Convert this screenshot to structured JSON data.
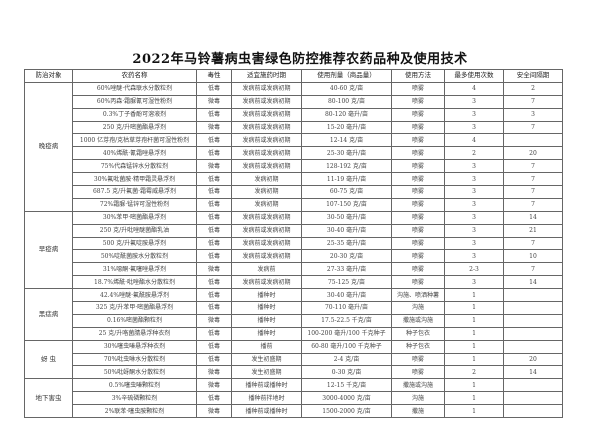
{
  "title": "2022年马铃薯病虫害绿色防控推荐农药品种及使用技术",
  "headers": [
    "防治对象",
    "农药名称",
    "毒性",
    "适宜施药时期",
    "使用剂量（商品量）",
    "使用方法",
    "最多使用次数",
    "安全间隔期"
  ],
  "groups": [
    {
      "target": "晚疫病",
      "rows": [
        [
          "60%唑醚·代森联水分散粒剂",
          "低毒",
          "发病前或发病初期",
          "40-60 克/亩",
          "喷雾",
          "4",
          "2"
        ],
        [
          "60%丙森·霜脲氰可湿性粉剂",
          "微毒",
          "发病前或发病初期",
          "80-100 克/亩",
          "喷雾",
          "3",
          "7"
        ],
        [
          "0.3%丁子香酚可溶液剂",
          "低毒",
          "发病前或发病初期",
          "80-120 毫升/亩",
          "喷雾",
          "3",
          "3"
        ],
        [
          "250 克/升嘧菌酯悬浮剂",
          "微毒",
          "发病前或发病初期",
          "15-20 毫升/亩",
          "喷雾",
          "3",
          "7"
        ],
        [
          "1000 亿芽孢/克枯草芽孢杆菌可湿性粉剂",
          "低毒",
          "发病前或发病初期",
          "12-14 克/亩",
          "喷雾",
          "4",
          ""
        ],
        [
          "40%烯酰·氰霜唑悬浮剂",
          "低毒",
          "发病前或发病初期",
          "25-30 毫升/亩",
          "喷雾",
          "2",
          "20"
        ],
        [
          "75%代森锰锌水分散粒剂",
          "微毒",
          "发病前或发病初期",
          "128-192 克/亩",
          "喷雾",
          "3",
          "7"
        ],
        [
          "30%氟吡菌胺·精甲霜灵悬浮剂",
          "低毒",
          "发病初期",
          "11-19 毫升/亩",
          "喷雾",
          "3",
          "7"
        ],
        [
          "687.5 克/升氟菌·霜霉威悬浮剂",
          "低毒",
          "发病初期",
          "60-75 克/亩",
          "喷雾",
          "3",
          "7"
        ],
        [
          "72%霜脲·锰锌可湿性粉剂",
          "低毒",
          "发病初期",
          "107-150 克/亩",
          "喷雾",
          "3",
          "7"
        ]
      ]
    },
    {
      "target": "早疫病",
      "rows": [
        [
          "30%苯甲·嘧菌酯悬浮剂",
          "低毒",
          "发病前或发病初期",
          "30-50 毫升/亩",
          "喷雾",
          "3",
          "14"
        ],
        [
          "250 克/升吡唑醚菌酯乳油",
          "低毒",
          "发病前或发病初期",
          "30-40 毫升/亩",
          "喷雾",
          "3",
          "21"
        ],
        [
          "500 克/升氟啶胺悬浮剂",
          "低毒",
          "发病前或发病初期",
          "25-35 毫升/亩",
          "喷雾",
          "3",
          "7"
        ],
        [
          "50%啶酰菌胺水分散粒剂",
          "低毒",
          "发病前或发病初期",
          "20-30 克/亩",
          "喷雾",
          "3",
          "10"
        ],
        [
          "31%噁酮·氟噻唑悬浮剂",
          "微毒",
          "发病前",
          "27-33 毫升/亩",
          "喷雾",
          "2-3",
          "7"
        ],
        [
          "18.7%烯酰·吡唑酯水分散粒剂",
          "低毒",
          "发病前或发病初期",
          "75-125 克/亩",
          "喷雾",
          "3",
          "14"
        ]
      ]
    },
    {
      "target": "黑痣病",
      "rows": [
        [
          "42.4%唑醚·氟酰胺悬浮剂",
          "低毒",
          "播种时",
          "30-40 毫升/亩",
          "沟施、喷洒种薯",
          "1",
          ""
        ],
        [
          "325 克/升苯甲·嘧菌酯悬浮剂",
          "低毒",
          "播种时",
          "70-110 毫升/亩",
          "沟施",
          "1",
          ""
        ],
        [
          "0.16%嘧菌酯颗粒剂",
          "微毒",
          "播种时",
          "17.5-22.5 千克/亩",
          "撒施或沟施",
          "1",
          ""
        ],
        [
          "25 克/升咯菌腈悬浮种衣剂",
          "低毒",
          "播种时",
          "100-200 毫升/100 千克种子",
          "种子包衣",
          "1",
          ""
        ]
      ]
    },
    {
      "target": "蚜 虫",
      "rows": [
        [
          "30%噻虫嗪悬浮种衣剂",
          "低毒",
          "播前",
          "60-80 毫升/100 千克种子",
          "种子包衣",
          "1",
          ""
        ],
        [
          "70%吡虫啉水分散粒剂",
          "低毒",
          "发生初盛期",
          "2-4 克/亩",
          "喷雾",
          "1",
          "20"
        ],
        [
          "50%吡蚜酮水分散粒剂",
          "微毒",
          "发生初盛期",
          "0-30 克/亩",
          "喷雾",
          "2",
          "14"
        ]
      ]
    },
    {
      "target": "地下害虫",
      "rows": [
        [
          "0.5%噻虫嗪颗粒剂",
          "微毒",
          "播种前或播种时",
          "12-15 千克/亩",
          "撒施或沟施",
          "1",
          ""
        ],
        [
          "3%辛硫磷颗粒剂",
          "低毒",
          "播种前拌地时",
          "3000-4000 克/亩",
          "沟施",
          "1",
          ""
        ],
        [
          "2%联苯·噻虫胺颗粒剂",
          "微毒",
          "播种前或播种时",
          "1500-2000 克/亩",
          "撒施",
          "1",
          ""
        ]
      ]
    }
  ]
}
